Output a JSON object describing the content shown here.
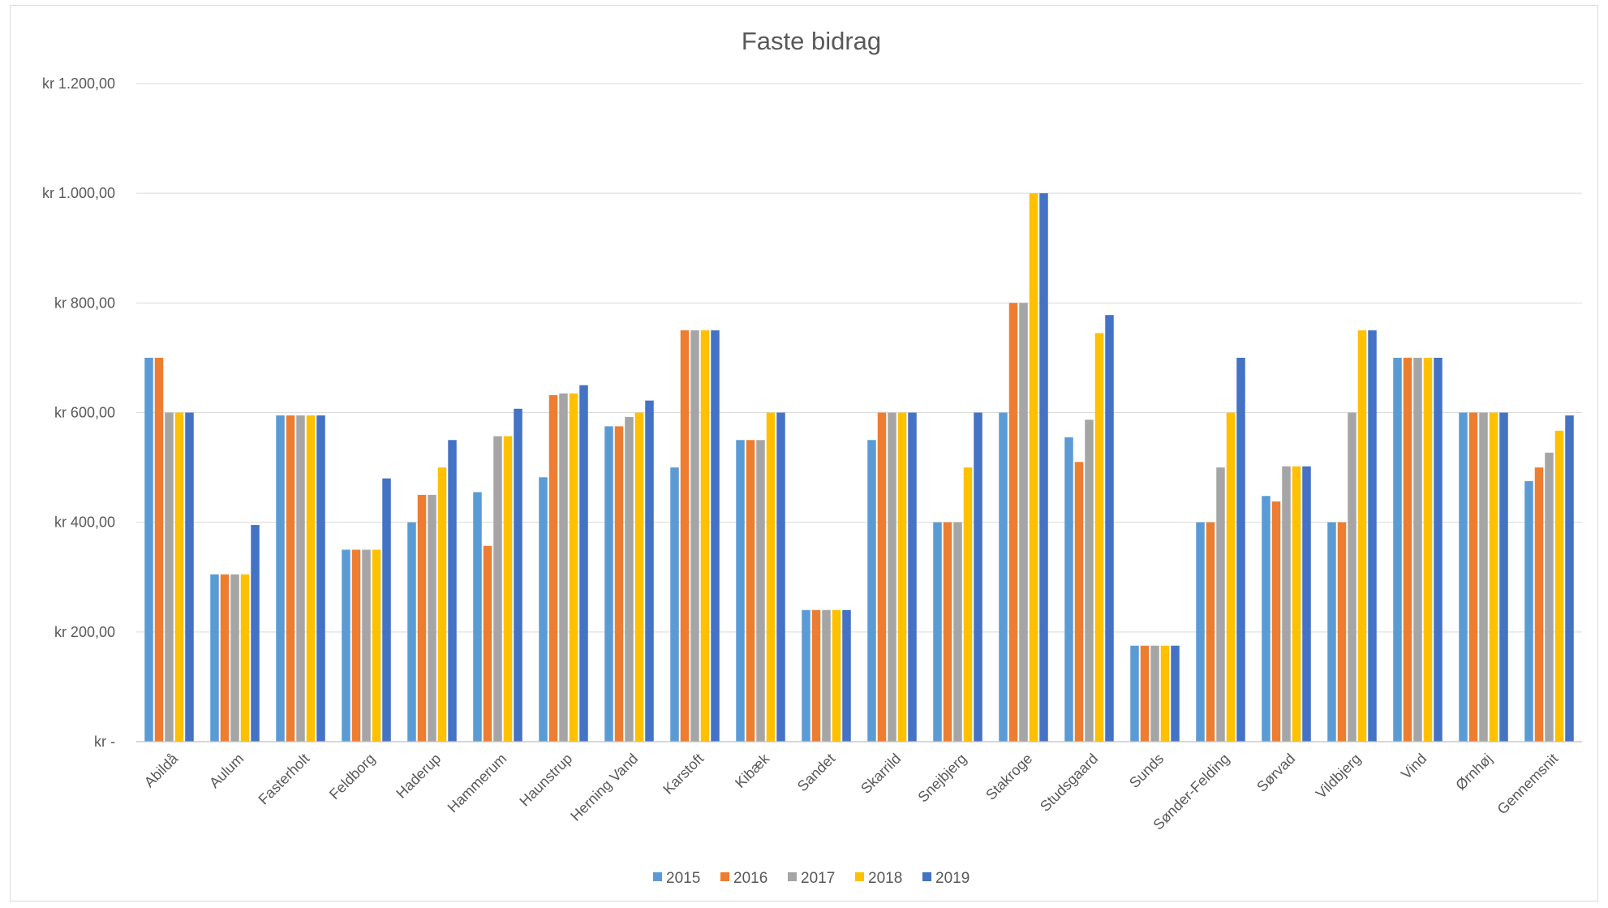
{
  "chart_data": {
    "type": "bar",
    "title": "Faste bidrag",
    "xlabel": "",
    "ylabel": "",
    "ylim": [
      0,
      1200
    ],
    "ytick_values": [
      0,
      200,
      400,
      600,
      800,
      1000,
      1200
    ],
    "ytick_labels": [
      "kr -",
      "kr 200,00",
      "kr 400,00",
      "kr 600,00",
      "kr 800,00",
      "kr 1.000,00",
      "kr 1.200,00"
    ],
    "grid": true,
    "legend_position": "bottom",
    "categories": [
      "Abildå",
      "Aulum",
      "Fasterholt",
      "Feldborg",
      "Haderup",
      "Hammerum",
      "Haunstrup",
      "Herning Vand",
      "Karstoft",
      "Kibæk",
      "Sandet",
      "Skarrild",
      "Snejbjerg",
      "Stakroge",
      "Studsgaard",
      "Sunds",
      "Sønder-Felding",
      "Sørvad",
      "Vildbjerg",
      "Vind",
      "Ørnhøj",
      "Gennemsnit"
    ],
    "series": [
      {
        "name": "2015",
        "color": "#5b9bd5",
        "values": [
          700,
          305,
          595,
          350,
          400,
          455,
          482,
          575,
          500,
          550,
          240,
          550,
          400,
          600,
          555,
          175,
          400,
          448,
          400,
          700,
          600,
          475
        ]
      },
      {
        "name": "2016",
        "color": "#ed7d31",
        "values": [
          700,
          305,
          595,
          350,
          450,
          357,
          632,
          575,
          750,
          550,
          240,
          600,
          400,
          800,
          510,
          175,
          400,
          438,
          400,
          700,
          600,
          500
        ]
      },
      {
        "name": "2017",
        "color": "#a5a5a5",
        "values": [
          600,
          305,
          595,
          350,
          450,
          557,
          635,
          592,
          750,
          550,
          240,
          600,
          400,
          800,
          587,
          175,
          500,
          502,
          600,
          700,
          600,
          527
        ]
      },
      {
        "name": "2018",
        "color": "#ffc000",
        "values": [
          600,
          305,
          595,
          350,
          500,
          557,
          635,
          600,
          750,
          600,
          240,
          600,
          500,
          1000,
          745,
          175,
          600,
          502,
          750,
          700,
          600,
          567
        ]
      },
      {
        "name": "2019",
        "color": "#4472c4",
        "values": [
          600,
          395,
          595,
          480,
          550,
          607,
          650,
          622,
          750,
          600,
          240,
          600,
          600,
          1000,
          778,
          175,
          700,
          502,
          750,
          700,
          600,
          595
        ]
      }
    ]
  }
}
